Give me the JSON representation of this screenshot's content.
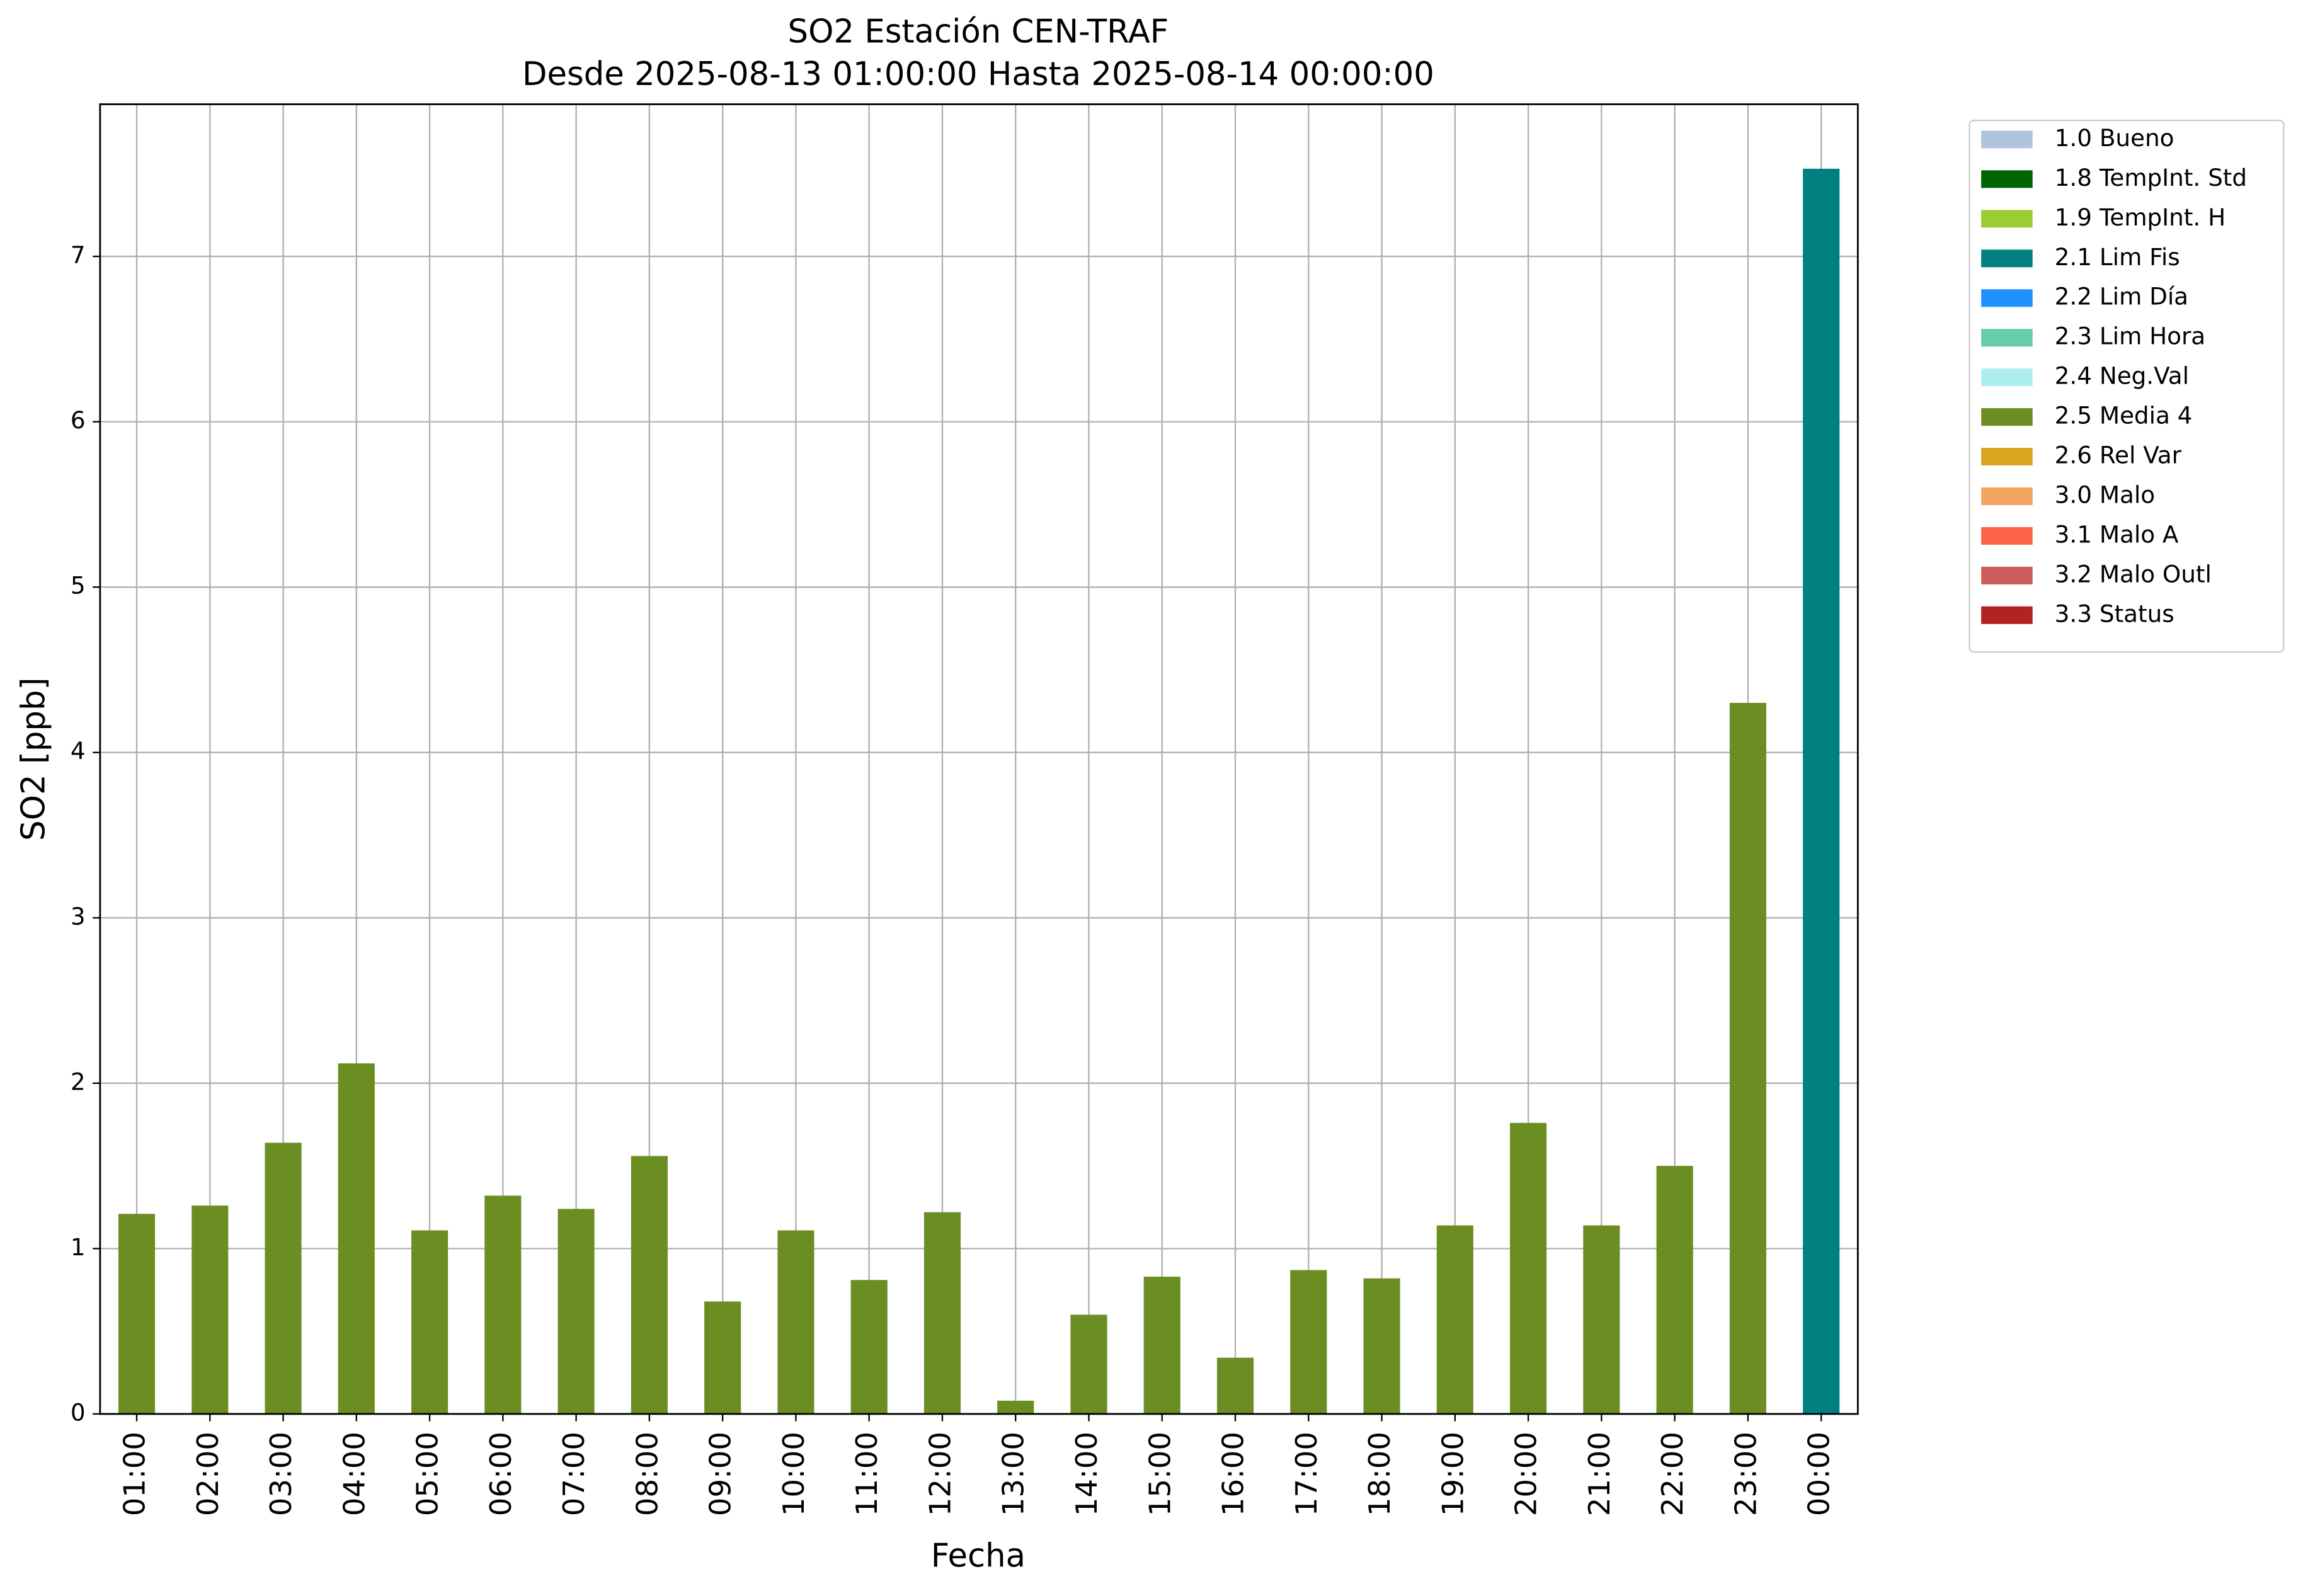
{
  "chart_data": {
    "type": "bar",
    "title": "SO2 Estación CEN-TRAF",
    "subtitle": "Desde 2025-08-13 01:00:00 Hasta 2025-08-14 00:00:00",
    "x_label": "Fecha",
    "y_label": "SO2 [ppb]",
    "categories": [
      "01:00",
      "02:00",
      "03:00",
      "04:00",
      "05:00",
      "06:00",
      "07:00",
      "08:00",
      "09:00",
      "10:00",
      "11:00",
      "12:00",
      "13:00",
      "14:00",
      "15:00",
      "16:00",
      "17:00",
      "18:00",
      "19:00",
      "20:00",
      "21:00",
      "22:00",
      "23:00",
      "00:00"
    ],
    "ylim": [
      0,
      7.92
    ],
    "yticks": [
      0,
      1,
      2,
      3,
      4,
      5,
      6,
      7
    ],
    "grid": true,
    "legend": "outside-right",
    "series": [
      {
        "name": "1.0 Bueno",
        "color": "#b0c4de",
        "values": [
          null,
          null,
          null,
          null,
          null,
          null,
          null,
          null,
          null,
          null,
          null,
          null,
          null,
          null,
          null,
          null,
          null,
          null,
          null,
          null,
          null,
          null,
          null,
          null
        ]
      },
      {
        "name": "1.8 TempInt. Std",
        "color": "#006400",
        "values": [
          null,
          null,
          null,
          null,
          null,
          null,
          null,
          null,
          null,
          null,
          null,
          null,
          null,
          null,
          null,
          null,
          null,
          null,
          null,
          null,
          null,
          null,
          null,
          null
        ]
      },
      {
        "name": "1.9 TempInt. H",
        "color": "#9acd32",
        "values": [
          null,
          null,
          null,
          null,
          null,
          null,
          null,
          null,
          null,
          null,
          null,
          null,
          null,
          null,
          null,
          null,
          null,
          null,
          null,
          null,
          null,
          null,
          null,
          null
        ]
      },
      {
        "name": "2.1 Lim Fis",
        "color": "#008080",
        "values": [
          null,
          null,
          null,
          null,
          null,
          null,
          null,
          null,
          null,
          null,
          null,
          null,
          null,
          null,
          null,
          null,
          null,
          null,
          null,
          null,
          null,
          null,
          null,
          7.53
        ]
      },
      {
        "name": "2.2 Lim Día",
        "color": "#1e90ff",
        "values": [
          null,
          null,
          null,
          null,
          null,
          null,
          null,
          null,
          null,
          null,
          null,
          null,
          null,
          null,
          null,
          null,
          null,
          null,
          null,
          null,
          null,
          null,
          null,
          null
        ]
      },
      {
        "name": "2.3 Lim Hora",
        "color": "#66cdaa",
        "values": [
          null,
          null,
          null,
          null,
          null,
          null,
          null,
          null,
          null,
          null,
          null,
          null,
          null,
          null,
          null,
          null,
          null,
          null,
          null,
          null,
          null,
          null,
          null,
          null
        ]
      },
      {
        "name": "2.4 Neg.Val",
        "color": "#afeeee",
        "values": [
          null,
          null,
          null,
          null,
          null,
          null,
          null,
          null,
          null,
          null,
          null,
          null,
          null,
          null,
          null,
          null,
          null,
          null,
          null,
          null,
          null,
          null,
          null,
          null
        ]
      },
      {
        "name": "2.5 Media 4",
        "color": "#6b8e23",
        "values": [
          1.21,
          1.26,
          1.64,
          2.12,
          1.11,
          1.32,
          1.24,
          1.56,
          0.68,
          1.11,
          0.81,
          1.22,
          0.08,
          0.6,
          0.83,
          0.34,
          0.87,
          0.82,
          1.14,
          1.76,
          1.14,
          1.5,
          4.3,
          null
        ]
      },
      {
        "name": "2.6 Rel Var",
        "color": "#daa520",
        "values": [
          null,
          null,
          null,
          null,
          null,
          null,
          null,
          null,
          null,
          null,
          null,
          null,
          null,
          null,
          null,
          null,
          null,
          null,
          null,
          null,
          null,
          null,
          null,
          null
        ]
      },
      {
        "name": "3.0 Malo",
        "color": "#f4a460",
        "values": [
          null,
          null,
          null,
          null,
          null,
          null,
          null,
          null,
          null,
          null,
          null,
          null,
          null,
          null,
          null,
          null,
          null,
          null,
          null,
          null,
          null,
          null,
          null,
          null
        ]
      },
      {
        "name": "3.1 Malo A",
        "color": "#ff6347",
        "values": [
          null,
          null,
          null,
          null,
          null,
          null,
          null,
          null,
          null,
          null,
          null,
          null,
          null,
          null,
          null,
          null,
          null,
          null,
          null,
          null,
          null,
          null,
          null,
          null
        ]
      },
      {
        "name": "3.2 Malo Outl",
        "color": "#cd5c5c",
        "values": [
          null,
          null,
          null,
          null,
          null,
          null,
          null,
          null,
          null,
          null,
          null,
          null,
          null,
          null,
          null,
          null,
          null,
          null,
          null,
          null,
          null,
          null,
          null,
          null
        ]
      },
      {
        "name": "3.3 Status",
        "color": "#b22222",
        "values": [
          null,
          null,
          null,
          null,
          null,
          null,
          null,
          null,
          null,
          null,
          null,
          null,
          null,
          null,
          null,
          null,
          null,
          null,
          null,
          null,
          null,
          null,
          null,
          null
        ]
      }
    ]
  }
}
